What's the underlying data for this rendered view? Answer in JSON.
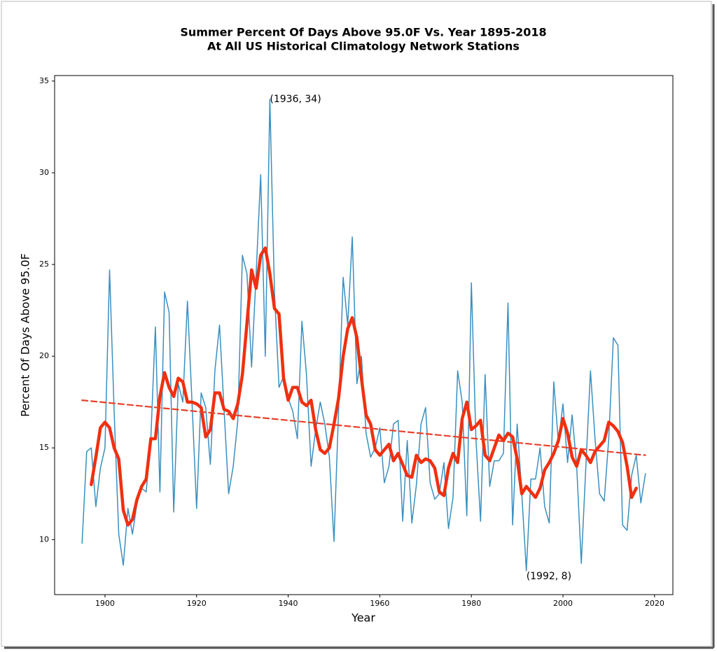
{
  "chart_data": {
    "type": "line",
    "title": [
      "Summer Percent Of Days Above 95.0F Vs. Year 1895-2018",
      "At All US Historical Climatology Network Stations"
    ],
    "xlabel": "Year",
    "ylabel": "Percent Of Days Above 95.0F",
    "xlim": [
      1889,
      2024
    ],
    "ylim": [
      7,
      35.3
    ],
    "xticks": [
      1900,
      1920,
      1940,
      1960,
      1980,
      2000,
      2020
    ],
    "yticks": [
      10,
      15,
      20,
      25,
      30,
      35
    ],
    "series": [
      {
        "color": "#3a8fc0",
        "width": 1.5,
        "dash": false,
        "x": [
          1895,
          1896,
          1897,
          1898,
          1899,
          1900,
          1901,
          1902,
          1903,
          1904,
          1905,
          1906,
          1907,
          1908,
          1909,
          1910,
          1911,
          1912,
          1913,
          1914,
          1915,
          1916,
          1917,
          1918,
          1919,
          1920,
          1921,
          1922,
          1923,
          1924,
          1925,
          1926,
          1927,
          1928,
          1929,
          1930,
          1931,
          1932,
          1933,
          1934,
          1935,
          1936,
          1937,
          1938,
          1939,
          1940,
          1941,
          1942,
          1943,
          1944,
          1945,
          1946,
          1947,
          1948,
          1949,
          1950,
          1951,
          1952,
          1953,
          1954,
          1955,
          1956,
          1957,
          1958,
          1959,
          1960,
          1961,
          1962,
          1963,
          1964,
          1965,
          1966,
          1967,
          1968,
          1969,
          1970,
          1971,
          1972,
          1973,
          1974,
          1975,
          1976,
          1977,
          1978,
          1979,
          1980,
          1981,
          1982,
          1983,
          1984,
          1985,
          1986,
          1987,
          1988,
          1989,
          1990,
          1991,
          1992,
          1993,
          1994,
          1995,
          1996,
          1997,
          1998,
          1999,
          2000,
          2001,
          2002,
          2003,
          2004,
          2005,
          2006,
          2007,
          2008,
          2009,
          2010,
          2011,
          2012,
          2013,
          2014,
          2015,
          2016,
          2017,
          2018
        ],
        "values": [
          9.8,
          14.8,
          15.0,
          11.8,
          13.9,
          15.0,
          24.7,
          17.0,
          10.3,
          8.6,
          11.7,
          10.3,
          12.0,
          12.8,
          12.6,
          15.5,
          21.6,
          12.6,
          23.5,
          22.4,
          11.5,
          18.5,
          17.5,
          23.0,
          17.5,
          11.7,
          18.0,
          17.2,
          14.1,
          19.2,
          21.7,
          17.1,
          12.5,
          14.0,
          16.5,
          25.5,
          24.5,
          19.4,
          24.5,
          29.9,
          20.0,
          34.0,
          23.5,
          18.3,
          18.9,
          17.7,
          17.0,
          15.5,
          21.9,
          19.0,
          14.0,
          16.0,
          17.5,
          16.3,
          14.5,
          9.9,
          17.0,
          24.3,
          21.7,
          26.5,
          18.5,
          20.0,
          15.8,
          14.5,
          15.0,
          16.1,
          13.1,
          14.0,
          16.3,
          16.5,
          11.0,
          15.4,
          10.9,
          13.0,
          16.3,
          17.2,
          13.1,
          12.2,
          12.5,
          14.2,
          10.6,
          12.3,
          19.2,
          17.5,
          11.3,
          24.0,
          15.5,
          11.0,
          19.0,
          12.9,
          14.3,
          14.3,
          14.7,
          22.9,
          10.8,
          16.3,
          12.5,
          8.3,
          13.3,
          13.3,
          15.0,
          11.8,
          10.9,
          18.6,
          15.3,
          17.4,
          14.2,
          16.8,
          14.0,
          8.7,
          14.0,
          19.2,
          15.5,
          12.5,
          12.1,
          15.5,
          21.0,
          20.6,
          10.8,
          10.5,
          13.5,
          14.6,
          12.0,
          13.6
        ]
      },
      {
        "color": "#f03010",
        "width": 4.5,
        "dash": false,
        "x": [
          1897,
          1898,
          1899,
          1900,
          1901,
          1902,
          1903,
          1904,
          1905,
          1906,
          1907,
          1908,
          1909,
          1910,
          1911,
          1912,
          1913,
          1914,
          1915,
          1916,
          1917,
          1918,
          1919,
          1920,
          1921,
          1922,
          1923,
          1924,
          1925,
          1926,
          1927,
          1928,
          1929,
          1930,
          1931,
          1932,
          1933,
          1934,
          1935,
          1936,
          1937,
          1938,
          1939,
          1940,
          1941,
          1942,
          1943,
          1944,
          1945,
          1946,
          1947,
          1948,
          1949,
          1950,
          1951,
          1952,
          1953,
          1954,
          1955,
          1956,
          1957,
          1958,
          1959,
          1960,
          1961,
          1962,
          1963,
          1964,
          1965,
          1966,
          1967,
          1968,
          1969,
          1970,
          1971,
          1972,
          1973,
          1974,
          1975,
          1976,
          1977,
          1978,
          1979,
          1980,
          1981,
          1982,
          1983,
          1984,
          1985,
          1986,
          1987,
          1988,
          1989,
          1990,
          1991,
          1992,
          1993,
          1994,
          1995,
          1996,
          1997,
          1998,
          1999,
          2000,
          2001,
          2002,
          2003,
          2004,
          2005,
          2006,
          2007,
          2008,
          2009,
          2010,
          2011,
          2012,
          2013,
          2014,
          2015,
          2016
        ],
        "values": [
          13.0,
          14.5,
          16.1,
          16.4,
          16.1,
          15.0,
          14.4,
          11.6,
          10.8,
          11.1,
          12.2,
          12.9,
          13.3,
          15.5,
          15.5,
          17.8,
          19.1,
          18.3,
          17.8,
          18.8,
          18.6,
          17.5,
          17.5,
          17.4,
          17.2,
          15.6,
          16.0,
          18.0,
          18.0,
          17.1,
          17.0,
          16.6,
          17.4,
          19.0,
          21.8,
          24.7,
          23.7,
          25.5,
          25.9,
          24.5,
          22.6,
          22.3,
          18.8,
          17.6,
          18.3,
          18.3,
          17.5,
          17.3,
          17.6,
          16.0,
          14.9,
          14.7,
          15.0,
          16.3,
          17.7,
          20.0,
          21.5,
          22.1,
          21.0,
          18.8,
          16.8,
          16.3,
          14.9,
          14.6,
          14.9,
          15.2,
          14.3,
          14.7,
          14.1,
          13.5,
          13.4,
          14.6,
          14.2,
          14.4,
          14.3,
          13.9,
          12.6,
          12.4,
          13.9,
          14.7,
          14.2,
          16.6,
          17.5,
          16.0,
          16.2,
          16.5,
          14.6,
          14.3,
          15.0,
          15.7,
          15.4,
          15.8,
          15.6,
          14.4,
          12.5,
          12.9,
          12.6,
          12.3,
          12.8,
          13.8,
          14.2,
          14.7,
          15.4,
          16.6,
          15.8,
          14.5,
          14.0,
          14.9,
          14.6,
          14.2,
          14.8,
          15.1,
          15.4,
          16.4,
          16.2,
          15.9,
          15.3,
          14.0,
          12.3,
          12.8
        ]
      },
      {
        "color": "#e8402a",
        "width": 2.2,
        "dash": true,
        "x": [
          1895,
          2018
        ],
        "values": [
          17.6,
          14.6
        ]
      }
    ],
    "annotations": [
      {
        "text": "(1936, 34)",
        "x": 1936,
        "y": 34
      },
      {
        "text": "(1992, 8)",
        "x": 1992,
        "y": 8
      }
    ]
  }
}
